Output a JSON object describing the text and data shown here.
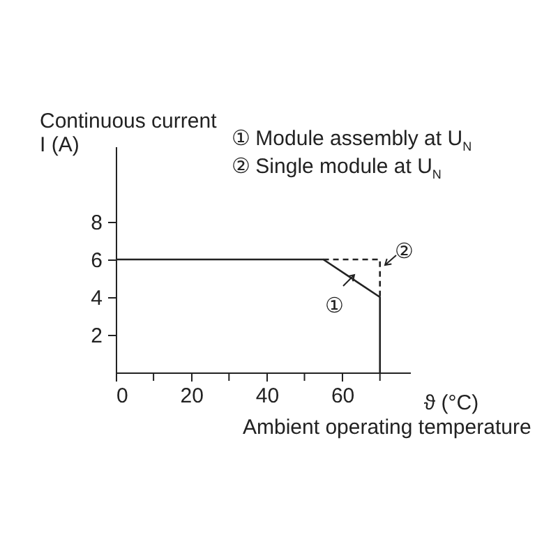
{
  "chart_data": {
    "type": "line",
    "xlabel": "ϑ (°C)",
    "ylabel": "Continuous current\nI (A)",
    "xlim": [
      0,
      78
    ],
    "ylim": [
      0,
      12
    ],
    "xticks": [
      0,
      {
        "value": 10,
        "label": null
      },
      20,
      {
        "value": 30,
        "label": null
      },
      40,
      {
        "value": 50,
        "label": null
      },
      60,
      {
        "value": 70,
        "label": null
      }
    ],
    "yticks": [
      2,
      4,
      6,
      8
    ],
    "series": [
      {
        "color": "#222222",
        "x": [
          0,
          55,
          70,
          70
        ],
        "values": [
          6,
          6,
          4,
          0
        ],
        "line_style": "solid"
      },
      {
        "color": "#222222",
        "x": [
          55,
          70,
          70
        ],
        "values": [
          6,
          6,
          4
        ],
        "line_style": "dashed"
      }
    ],
    "annotations": [
      "① Module assembly at U$_{N}$",
      "② Single module at U$_{N}$",
      "Ambient operating temperature",
      "①",
      "②"
    ],
    "grid": false,
    "marker": "none"
  }
}
